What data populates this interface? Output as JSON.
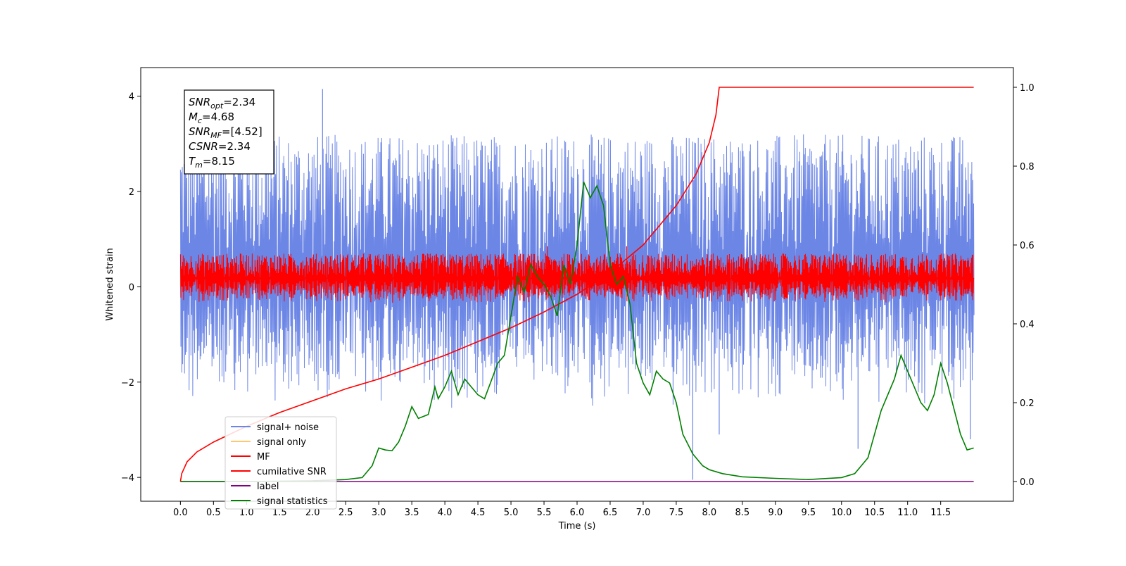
{
  "chart_data": {
    "type": "line",
    "xlabel": "Time (s)",
    "ylabel": "Whitened strain",
    "xlim": [
      -0.6,
      12.6
    ],
    "ylim_left": [
      -4.5,
      4.6
    ],
    "ylim_right": [
      -0.05,
      1.05
    ],
    "x_ticks": [
      "0.0",
      "0.5",
      "1.0",
      "1.5",
      "2.0",
      "2.5",
      "3.0",
      "3.5",
      "4.0",
      "4.5",
      "5.0",
      "5.5",
      "6.0",
      "6.5",
      "7.0",
      "7.5",
      "8.0",
      "8.5",
      "9.0",
      "9.5",
      "10.0",
      "10.5",
      "11.0",
      "11.5"
    ],
    "y_ticks_left": [
      "−4",
      "−2",
      "0",
      "2",
      "4"
    ],
    "y_ticks_right": [
      "0.0",
      "0.2",
      "0.4",
      "0.6",
      "0.8",
      "1.0"
    ],
    "annotation": [
      {
        "main": "SNR",
        "sub": "opt",
        "value": "=2.34"
      },
      {
        "main": "M",
        "sub": "c",
        "value": "=4.68"
      },
      {
        "main": "SNR",
        "sub": "MF",
        "value": "=[4.52]"
      },
      {
        "main": "CSNR",
        "sub": "",
        "value": "=2.34"
      },
      {
        "main": "T",
        "sub": "m",
        "value": "=8.15"
      }
    ],
    "legend_position": "lower-left",
    "series": [
      {
        "name": "signal+ noise",
        "color": "#6c86e6",
        "axis": "left",
        "kind": "noise",
        "x_range": [
          0.0,
          12.0
        ],
        "envelope": [
          -2.6,
          3.2
        ],
        "spikes": [
          [
            2.15,
            4.15
          ],
          [
            7.75,
            -4.05
          ],
          [
            8.15,
            -3.1
          ],
          [
            10.25,
            -3.4
          ],
          [
            11.95,
            -3.2
          ]
        ]
      },
      {
        "name": "signal only",
        "color": "#ffc870",
        "axis": "left",
        "kind": "flat",
        "values": []
      },
      {
        "name": "MF",
        "color": "#ff0000",
        "axis": "left",
        "kind": "noise",
        "x_range": [
          0.0,
          12.0
        ],
        "envelope": [
          -0.35,
          0.7
        ],
        "spikes": [
          [
            5.55,
            0.85
          ],
          [
            6.75,
            0.85
          ]
        ]
      },
      {
        "name": "cumilative SNR",
        "color": "#ff0000",
        "axis": "right",
        "x": [
          0.0,
          0.02,
          0.1,
          0.25,
          0.5,
          1.0,
          1.5,
          2.0,
          2.5,
          3.0,
          3.5,
          4.0,
          4.5,
          5.0,
          5.5,
          6.0,
          6.5,
          7.0,
          7.5,
          7.8,
          8.0,
          8.1,
          8.15,
          9.0,
          10.0,
          11.0,
          12.0
        ],
        "y": [
          0.0,
          0.02,
          0.05,
          0.075,
          0.1,
          0.14,
          0.175,
          0.205,
          0.235,
          0.26,
          0.29,
          0.32,
          0.355,
          0.39,
          0.43,
          0.475,
          0.53,
          0.6,
          0.7,
          0.78,
          0.86,
          0.93,
          1.0,
          1.0,
          1.0,
          1.0,
          1.0
        ]
      },
      {
        "name": "label",
        "color": "#800080",
        "axis": "right",
        "x": [
          0.0,
          12.0
        ],
        "y": [
          0.0,
          0.0
        ]
      },
      {
        "name": "signal statistics",
        "color": "#008000",
        "axis": "right",
        "x": [
          0.0,
          1.0,
          2.0,
          2.5,
          2.75,
          2.9,
          3.0,
          3.1,
          3.2,
          3.3,
          3.4,
          3.5,
          3.6,
          3.75,
          3.85,
          3.9,
          4.0,
          4.1,
          4.2,
          4.3,
          4.4,
          4.5,
          4.6,
          4.8,
          4.9,
          5.0,
          5.1,
          5.2,
          5.3,
          5.4,
          5.5,
          5.6,
          5.7,
          5.8,
          5.9,
          6.0,
          6.1,
          6.2,
          6.3,
          6.4,
          6.5,
          6.6,
          6.7,
          6.8,
          6.9,
          7.0,
          7.1,
          7.2,
          7.3,
          7.4,
          7.5,
          7.6,
          7.75,
          7.9,
          8.0,
          8.2,
          8.5,
          9.0,
          9.5,
          10.0,
          10.2,
          10.4,
          10.6,
          10.8,
          10.9,
          11.0,
          11.2,
          11.3,
          11.4,
          11.5,
          11.6,
          11.8,
          11.9,
          12.0
        ],
        "y": [
          0.0,
          0.0,
          0.002,
          0.005,
          0.01,
          0.04,
          0.085,
          0.08,
          0.078,
          0.1,
          0.14,
          0.19,
          0.16,
          0.17,
          0.24,
          0.21,
          0.24,
          0.28,
          0.22,
          0.26,
          0.24,
          0.22,
          0.21,
          0.3,
          0.32,
          0.42,
          0.52,
          0.48,
          0.55,
          0.52,
          0.5,
          0.47,
          0.42,
          0.55,
          0.5,
          0.6,
          0.76,
          0.72,
          0.75,
          0.7,
          0.55,
          0.5,
          0.52,
          0.45,
          0.3,
          0.25,
          0.22,
          0.28,
          0.26,
          0.25,
          0.2,
          0.12,
          0.07,
          0.04,
          0.03,
          0.02,
          0.012,
          0.008,
          0.005,
          0.01,
          0.02,
          0.06,
          0.18,
          0.26,
          0.32,
          0.28,
          0.2,
          0.18,
          0.22,
          0.3,
          0.25,
          0.12,
          0.08,
          0.085
        ]
      }
    ]
  }
}
